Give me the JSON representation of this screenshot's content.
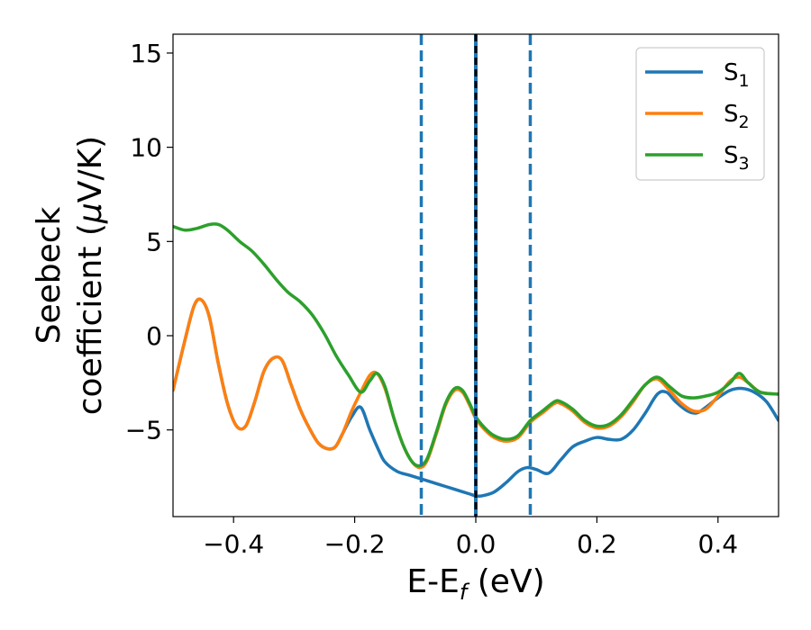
{
  "chart_data": {
    "type": "line",
    "xlabel": "E-E",
    "xlabel_sub": "f",
    "xlabel_unit": " (eV)",
    "ylabel_line1": "Seebeck",
    "ylabel_line2": "coefficient  (",
    "ylabel_mu": "μ",
    "ylabel_unit": "V/K)",
    "xlim": [
      -0.5,
      0.5
    ],
    "ylim": [
      -9.6,
      16.0
    ],
    "xticks": [
      -0.4,
      -0.2,
      0.0,
      0.2,
      0.4
    ],
    "xtick_labels": [
      "−0.4",
      "−0.2",
      "0.0",
      "0.2",
      "0.4"
    ],
    "yticks": [
      -5,
      0,
      5,
      10,
      15
    ],
    "ytick_labels": [
      "−5",
      "0",
      "5",
      "10",
      "15"
    ],
    "grid": false,
    "legend_position": "top-right",
    "vlines": [
      {
        "x": -0.09,
        "style": "dashed",
        "color": "#1f77b4"
      },
      {
        "x": 0.09,
        "style": "dashed",
        "color": "#1f77b4"
      },
      {
        "x": 0.0,
        "style": "solid",
        "color": "#1f77b4"
      },
      {
        "x": 0.0,
        "style": "dashed",
        "color": "#000000"
      }
    ],
    "series": [
      {
        "name": "S",
        "sub": "1",
        "color": "#1f77b4",
        "x": [
          -0.5,
          -0.48,
          -0.465,
          -0.453,
          -0.44,
          -0.425,
          -0.41,
          -0.395,
          -0.38,
          -0.365,
          -0.35,
          -0.335,
          -0.32,
          -0.305,
          -0.29,
          -0.275,
          -0.26,
          -0.245,
          -0.232,
          -0.22,
          -0.205,
          -0.19,
          -0.175,
          -0.16,
          -0.15,
          -0.13,
          -0.11,
          -0.09,
          -0.07,
          -0.05,
          -0.03,
          -0.01,
          0.0,
          0.01,
          0.03,
          0.05,
          0.07,
          0.085,
          0.1,
          0.12,
          0.14,
          0.16,
          0.18,
          0.2,
          0.22,
          0.24,
          0.26,
          0.28,
          0.3,
          0.315,
          0.33,
          0.35,
          0.365,
          0.38,
          0.4,
          0.42,
          0.44,
          0.46,
          0.48,
          0.5
        ],
        "y": [
          -2.9,
          -0.2,
          1.6,
          1.9,
          1.0,
          -1.5,
          -3.6,
          -4.8,
          -4.8,
          -3.5,
          -1.9,
          -1.2,
          -1.3,
          -2.6,
          -3.9,
          -4.9,
          -5.7,
          -6.0,
          -5.9,
          -5.2,
          -4.3,
          -3.8,
          -5.0,
          -6.1,
          -6.7,
          -7.2,
          -7.4,
          -7.6,
          -7.8,
          -8.0,
          -8.2,
          -8.4,
          -8.5,
          -8.5,
          -8.3,
          -7.8,
          -7.2,
          -7.0,
          -7.1,
          -7.3,
          -6.6,
          -5.9,
          -5.6,
          -5.4,
          -5.5,
          -5.5,
          -5.0,
          -4.1,
          -3.1,
          -3.0,
          -3.5,
          -4.0,
          -4.1,
          -3.8,
          -3.3,
          -2.9,
          -2.8,
          -3.0,
          -3.5,
          -4.5
        ]
      },
      {
        "name": "S",
        "sub": "2",
        "color": "#ff7f0e",
        "x": [
          -0.5,
          -0.48,
          -0.465,
          -0.453,
          -0.44,
          -0.425,
          -0.41,
          -0.395,
          -0.38,
          -0.365,
          -0.35,
          -0.335,
          -0.32,
          -0.305,
          -0.29,
          -0.275,
          -0.26,
          -0.245,
          -0.232,
          -0.22,
          -0.205,
          -0.19,
          -0.175,
          -0.163,
          -0.15,
          -0.135,
          -0.12,
          -0.105,
          -0.092,
          -0.08,
          -0.065,
          -0.05,
          -0.035,
          -0.022,
          -0.01,
          0.0,
          0.015,
          0.03,
          0.05,
          0.07,
          0.09,
          0.11,
          0.13,
          0.14,
          0.16,
          0.18,
          0.2,
          0.22,
          0.24,
          0.26,
          0.28,
          0.3,
          0.32,
          0.34,
          0.36,
          0.38,
          0.4,
          0.42,
          0.435,
          0.45,
          0.47,
          0.5
        ],
        "y": [
          -2.9,
          -0.2,
          1.6,
          1.9,
          1.0,
          -1.5,
          -3.6,
          -4.8,
          -4.8,
          -3.5,
          -1.9,
          -1.2,
          -1.3,
          -2.6,
          -3.9,
          -4.9,
          -5.7,
          -6.0,
          -5.9,
          -5.2,
          -4.0,
          -3.0,
          -2.1,
          -2.0,
          -2.8,
          -4.4,
          -5.8,
          -6.7,
          -7.0,
          -6.6,
          -5.2,
          -3.7,
          -2.9,
          -3.0,
          -3.7,
          -4.4,
          -5.0,
          -5.4,
          -5.6,
          -5.4,
          -4.6,
          -4.1,
          -3.6,
          -3.6,
          -4.0,
          -4.6,
          -4.9,
          -4.8,
          -4.3,
          -3.5,
          -2.6,
          -2.3,
          -2.9,
          -3.6,
          -4.0,
          -3.9,
          -3.2,
          -2.4,
          -2.2,
          -2.5,
          -3.0,
          -3.1
        ]
      },
      {
        "name": "S",
        "sub": "3",
        "color": "#2ca02c",
        "x": [
          -0.5,
          -0.48,
          -0.46,
          -0.44,
          -0.425,
          -0.41,
          -0.39,
          -0.37,
          -0.35,
          -0.33,
          -0.31,
          -0.29,
          -0.27,
          -0.25,
          -0.23,
          -0.21,
          -0.19,
          -0.175,
          -0.163,
          -0.15,
          -0.135,
          -0.12,
          -0.105,
          -0.092,
          -0.08,
          -0.065,
          -0.05,
          -0.035,
          -0.022,
          -0.01,
          0.0,
          0.015,
          0.03,
          0.05,
          0.07,
          0.09,
          0.11,
          0.13,
          0.14,
          0.16,
          0.18,
          0.2,
          0.22,
          0.24,
          0.26,
          0.28,
          0.3,
          0.32,
          0.34,
          0.36,
          0.38,
          0.4,
          0.42,
          0.435,
          0.45,
          0.47,
          0.5
        ],
        "y": [
          5.8,
          5.6,
          5.7,
          5.9,
          5.9,
          5.6,
          5.0,
          4.5,
          3.8,
          3.0,
          2.3,
          1.8,
          1.1,
          0.1,
          -1.1,
          -2.1,
          -3.0,
          -2.4,
          -2.0,
          -2.7,
          -4.4,
          -5.8,
          -6.7,
          -6.9,
          -6.5,
          -5.1,
          -3.6,
          -2.8,
          -2.9,
          -3.6,
          -4.3,
          -4.9,
          -5.3,
          -5.5,
          -5.3,
          -4.5,
          -4.0,
          -3.5,
          -3.5,
          -3.9,
          -4.5,
          -4.8,
          -4.7,
          -4.2,
          -3.4,
          -2.6,
          -2.2,
          -2.7,
          -3.2,
          -3.3,
          -3.2,
          -3.0,
          -2.5,
          -2.0,
          -2.5,
          -3.0,
          -3.1
        ]
      }
    ]
  }
}
